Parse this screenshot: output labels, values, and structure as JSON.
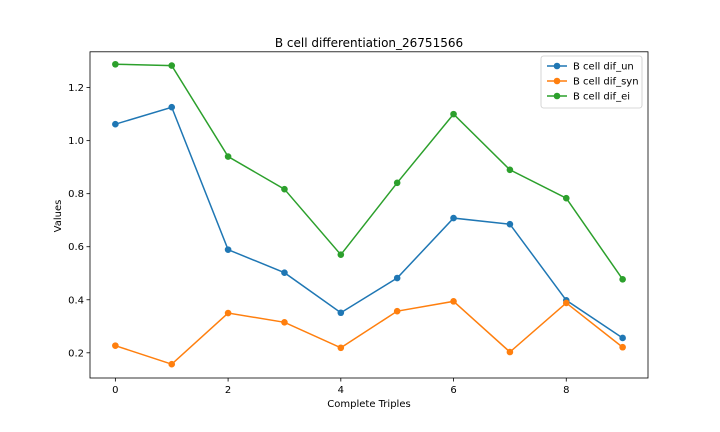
{
  "chart_data": {
    "type": "line",
    "title": "B cell differentiation_26751566",
    "xlabel": "Complete Triples",
    "ylabel": "Values",
    "xlim": [
      -0.45,
      9.45
    ],
    "ylim": [
      0.105,
      1.335
    ],
    "xticks": [
      0,
      2,
      4,
      6,
      8
    ],
    "yticks": [
      0.2,
      0.4,
      0.6,
      0.8,
      1.0,
      1.2
    ],
    "ytick_labels": [
      "0.2",
      "0.4",
      "0.6",
      "0.8",
      "1.0",
      "1.2"
    ],
    "grid": false,
    "legend_position": "top-right",
    "x": [
      0,
      1,
      2,
      3,
      4,
      5,
      6,
      7,
      8,
      9
    ],
    "series": [
      {
        "name": "B cell dif_un",
        "color": "#1f77b4",
        "values": [
          1.062,
          1.126,
          0.589,
          0.502,
          0.351,
          0.482,
          0.708,
          0.685,
          0.398,
          0.256
        ]
      },
      {
        "name": "B cell dif_syn",
        "color": "#ff7f0e",
        "values": [
          0.227,
          0.157,
          0.35,
          0.315,
          0.219,
          0.357,
          0.394,
          0.203,
          0.388,
          0.221
        ]
      },
      {
        "name": "B cell dif_ei",
        "color": "#2ca02c",
        "values": [
          1.288,
          1.283,
          0.94,
          0.817,
          0.57,
          0.841,
          1.1,
          0.89,
          0.783,
          0.477
        ]
      }
    ]
  }
}
